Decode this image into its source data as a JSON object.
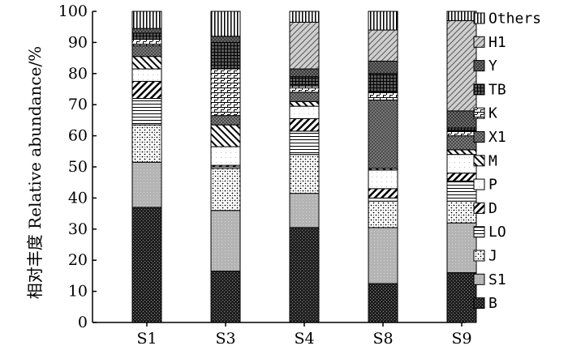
{
  "chart_data": {
    "type": "bar",
    "stacked": true,
    "title": "",
    "xlabel": "",
    "ylabel": "相对丰度 Relative abundance/%",
    "ylim": [
      0,
      100
    ],
    "yticks": [
      0,
      10,
      20,
      30,
      40,
      50,
      60,
      70,
      80,
      90,
      100
    ],
    "grid": false,
    "legend_position": "right",
    "categories": [
      "S1",
      "S3",
      "S4",
      "S8",
      "S9"
    ],
    "series": [
      {
        "name": "B",
        "values": [
          37.0,
          16.5,
          30.5,
          12.5,
          16.0
        ]
      },
      {
        "name": "S1",
        "values": [
          14.5,
          19.5,
          11.0,
          18.0,
          16.0
        ]
      },
      {
        "name": "J",
        "values": [
          12.0,
          13.5,
          12.5,
          8.5,
          7.0
        ]
      },
      {
        "name": "LO",
        "values": [
          8.5,
          0.5,
          7.5,
          1.0,
          6.5
        ]
      },
      {
        "name": "D",
        "values": [
          5.5,
          0.5,
          4.0,
          3.0,
          2.5
        ]
      },
      {
        "name": "P",
        "values": [
          4.0,
          6.0,
          4.0,
          6.0,
          6.0
        ]
      },
      {
        "name": "M",
        "values": [
          4.0,
          7.0,
          1.5,
          0.5,
          1.5
        ]
      },
      {
        "name": "X1",
        "values": [
          3.5,
          3.0,
          3.0,
          22.0,
          4.5
        ]
      },
      {
        "name": "K",
        "values": [
          2.0,
          15.0,
          2.0,
          2.5,
          1.5
        ]
      },
      {
        "name": "TB",
        "values": [
          2.0,
          8.5,
          3.0,
          6.0,
          1.0
        ]
      },
      {
        "name": "Y",
        "values": [
          1.5,
          2.0,
          2.5,
          4.0,
          5.5
        ]
      },
      {
        "name": "H1",
        "values": [
          0.0,
          0.0,
          15.0,
          10.0,
          29.0
        ]
      },
      {
        "name": "Others",
        "values": [
          5.5,
          8.0,
          3.5,
          6.0,
          3.0
        ]
      }
    ]
  }
}
